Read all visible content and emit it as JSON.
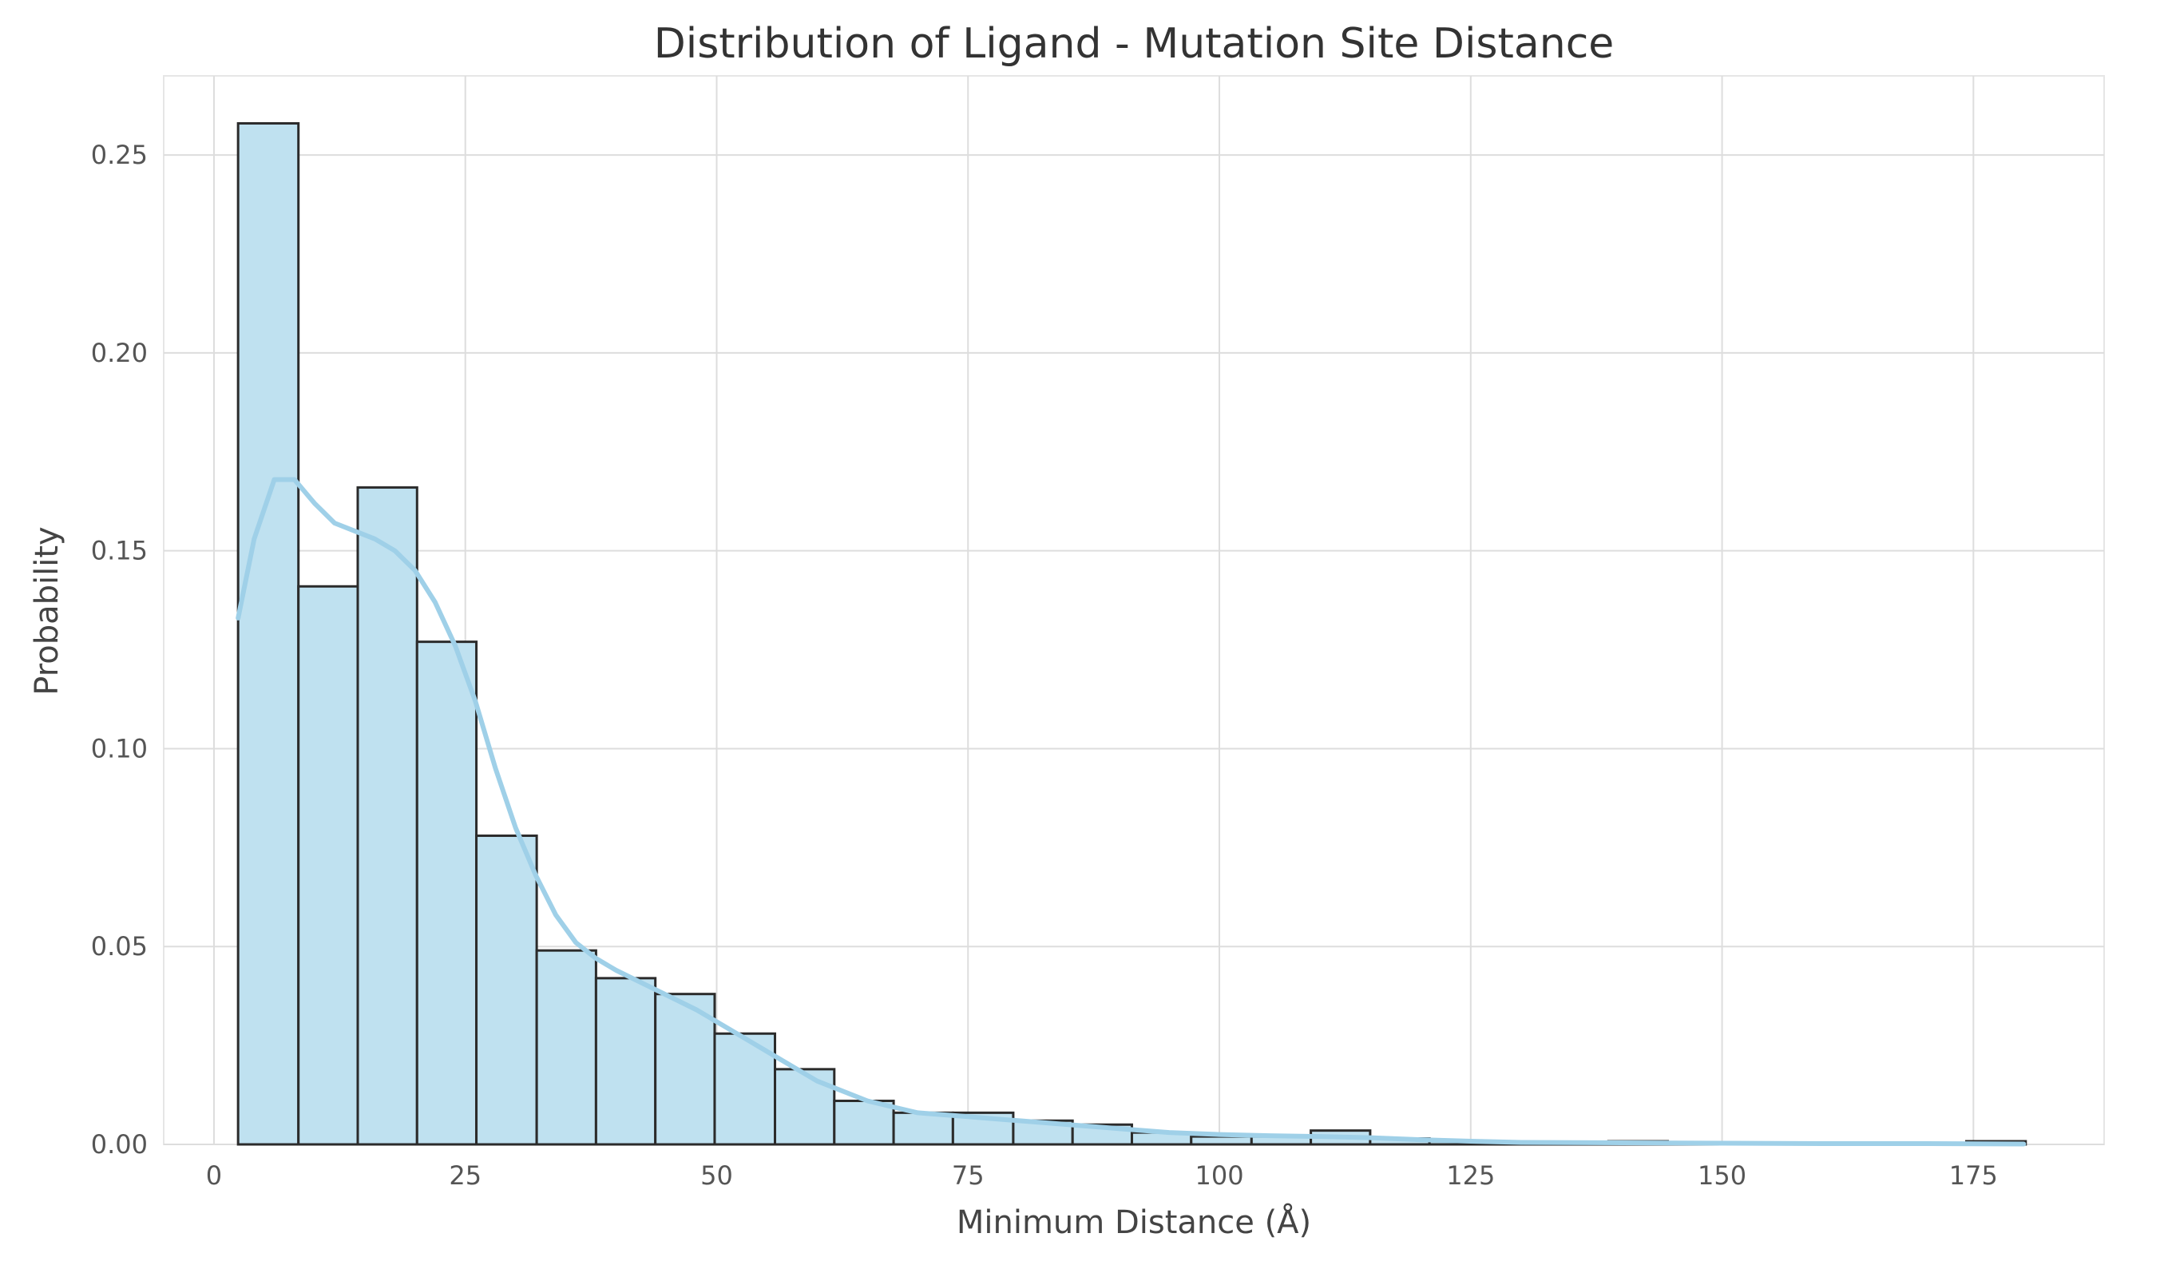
{
  "colors": {
    "bar_fill": "#bfe1f0",
    "bar_stroke": "#2b2b2b",
    "kde_line": "#9fd0e8",
    "grid": "#dddddd",
    "background": "#ffffff"
  },
  "chart_data": {
    "type": "bar",
    "subtype": "histogram_with_kde",
    "title": "Distribution of Ligand - Mutation Site Distance",
    "xlabel": "Minimum Distance (Å)",
    "ylabel": "Probability",
    "xlim": [
      -5,
      188
    ],
    "ylim": [
      0,
      0.27
    ],
    "grid": true,
    "x_ticks": [
      0,
      25,
      50,
      75,
      100,
      125,
      150,
      175
    ],
    "x_tick_labels": [
      "0",
      "25",
      "50",
      "75",
      "100",
      "125",
      "150",
      "175"
    ],
    "y_ticks": [
      0.0,
      0.05,
      0.1,
      0.15,
      0.2,
      0.25
    ],
    "y_tick_labels": [
      "0.00",
      "0.05",
      "0.10",
      "0.15",
      "0.20",
      "0.25"
    ],
    "bin_edges": [
      2.4,
      8.4,
      14.3,
      20.2,
      26.1,
      32.1,
      38.0,
      43.9,
      49.8,
      55.8,
      61.7,
      67.6,
      73.5,
      79.5,
      85.4,
      91.3,
      97.2,
      103.2,
      109.1,
      115.0,
      120.9,
      126.9,
      132.8,
      138.7,
      144.6,
      150.6,
      156.5,
      162.4,
      168.3,
      174.3,
      180.2
    ],
    "values": [
      0.258,
      0.141,
      0.166,
      0.127,
      0.078,
      0.049,
      0.042,
      0.038,
      0.028,
      0.019,
      0.011,
      0.008,
      0.008,
      0.006,
      0.005,
      0.003,
      0.002,
      0.002,
      0.0035,
      0.0015,
      0.0008,
      0.0004,
      0.0004,
      0.0008,
      0.0003,
      0.0002,
      0.0002,
      0.0002,
      0.0002,
      0.0008
    ],
    "kde": {
      "x": [
        2.4,
        4,
        6,
        8,
        10,
        12,
        14,
        16,
        18,
        20,
        22,
        24,
        26,
        28,
        30,
        32,
        34,
        36,
        38,
        40,
        44,
        48,
        52,
        56,
        60,
        65,
        70,
        75,
        80,
        85,
        90,
        95,
        100,
        105,
        110,
        115,
        120,
        125,
        130,
        140,
        150,
        160,
        170,
        180
      ],
      "y": [
        0.133,
        0.153,
        0.168,
        0.168,
        0.162,
        0.157,
        0.155,
        0.153,
        0.15,
        0.145,
        0.137,
        0.126,
        0.112,
        0.095,
        0.08,
        0.068,
        0.058,
        0.051,
        0.047,
        0.044,
        0.039,
        0.034,
        0.028,
        0.022,
        0.016,
        0.011,
        0.008,
        0.007,
        0.006,
        0.005,
        0.004,
        0.003,
        0.0025,
        0.0022,
        0.002,
        0.0017,
        0.0012,
        0.0008,
        0.0005,
        0.0004,
        0.0003,
        0.0002,
        0.0002,
        0.0001
      ]
    }
  }
}
